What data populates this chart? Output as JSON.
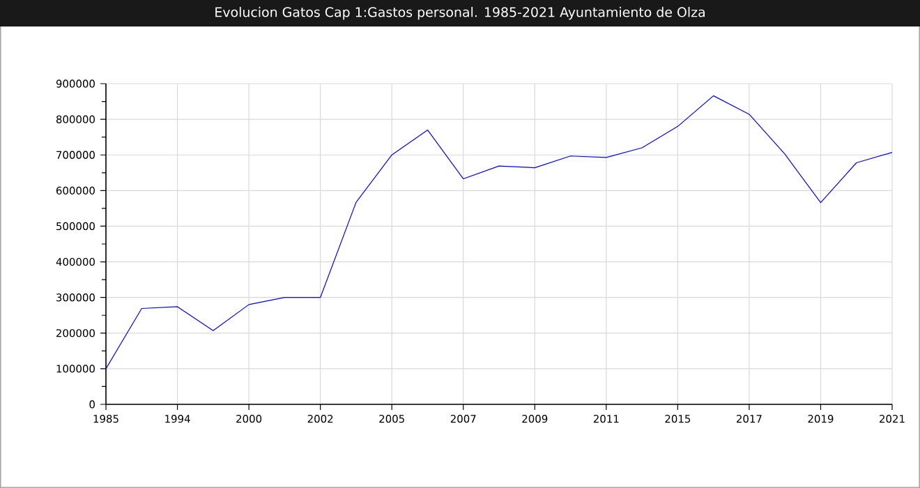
{
  "chart_data": {
    "type": "line",
    "title": "Evolucion Gatos Cap 1:Gastos personal. 1985-2021 Ayuntamiento de Olza",
    "categories": [
      "1985",
      null,
      "1994",
      null,
      "2000",
      null,
      "2002",
      null,
      "2005",
      null,
      "2007",
      null,
      "2009",
      null,
      "2011",
      null,
      "2015",
      null,
      "2017",
      null,
      "2019",
      null,
      "2021"
    ],
    "series": [
      {
        "color": "#0000ff",
        "values": [
          100000,
          269000,
          274000,
          207000,
          280000,
          300000,
          300000,
          567000,
          700000,
          770000,
          633000,
          669000,
          664000,
          697000,
          693000,
          720000,
          780000,
          866000,
          814000,
          702000,
          566000,
          678000,
          707000
        ]
      }
    ],
    "ylim": [
      0,
      900000
    ],
    "yticks": [
      0,
      100000,
      200000,
      300000,
      400000,
      500000,
      600000,
      700000,
      800000,
      900000
    ],
    "grid": true,
    "marker": "none",
    "line_style": "solid"
  }
}
